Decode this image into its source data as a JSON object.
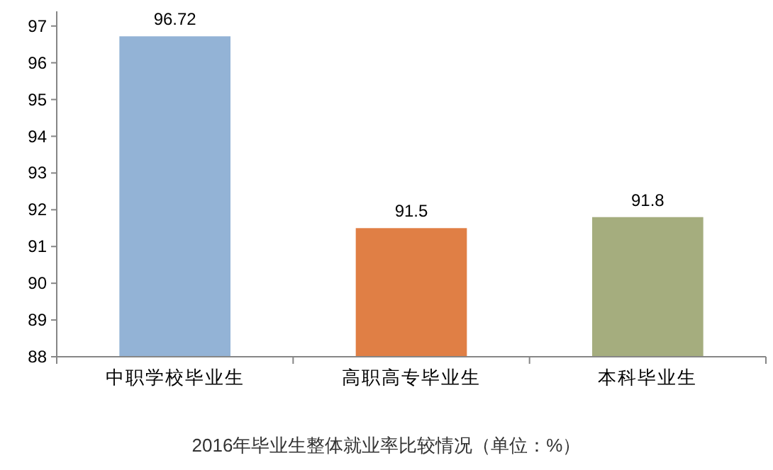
{
  "chart_data": {
    "type": "bar",
    "title": "2016年毕业生整体就业率比较情况（单位：%）",
    "categories": [
      "中职学校毕业生",
      "高职高专毕业生",
      "本科毕业生"
    ],
    "values": [
      96.72,
      91.5,
      91.8
    ],
    "colors": [
      "#93b3d6",
      "#e07f45",
      "#a5ad7e"
    ],
    "ylim": [
      88,
      97.4
    ],
    "yticks": [
      88,
      89,
      90,
      91,
      92,
      93,
      94,
      95,
      96,
      97
    ],
    "data_labels": true
  }
}
